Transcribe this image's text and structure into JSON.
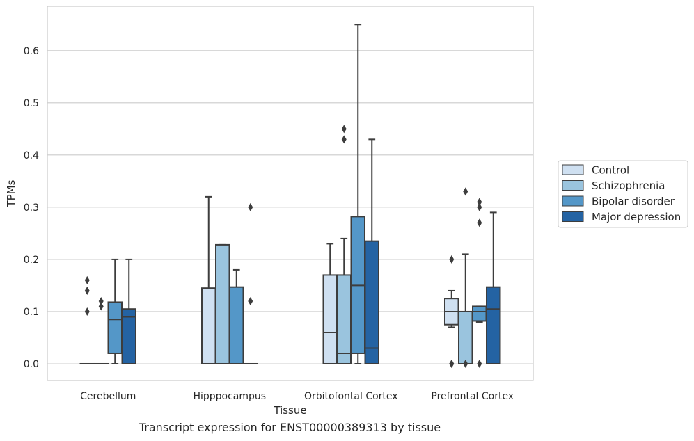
{
  "chart_data": {
    "type": "boxplot",
    "caption": "Transcript expression for ENST00000389313 by tissue",
    "xlabel": "Tissue",
    "ylabel": "TPMs",
    "ylim": [
      -0.032,
      0.685
    ],
    "yticks": [
      "0.0",
      "0.1",
      "0.2",
      "0.3",
      "0.4",
      "0.5",
      "0.6"
    ],
    "grid": true,
    "legend_position": "right",
    "categories": [
      "Cerebellum",
      "Hipppocampus",
      "Orbitofontal Cortex",
      "Prefrontal Cortex"
    ],
    "series": [
      {
        "name": "Control",
        "color": "#cfe0f1",
        "boxes": [
          {
            "low": 0,
            "q1": 0,
            "median": 0,
            "q3": 0,
            "high": 0,
            "outliers": [
              0.1,
              0.14,
              0.16
            ]
          },
          {
            "low": 0,
            "q1": 0,
            "median": 0,
            "q3": 0.145,
            "high": 0.32,
            "outliers": []
          },
          {
            "low": 0,
            "q1": 0,
            "median": 0.06,
            "q3": 0.17,
            "high": 0.23,
            "outliers": []
          },
          {
            "low": 0.07,
            "q1": 0.075,
            "median": 0.1,
            "q3": 0.125,
            "high": 0.14,
            "outliers": [
              0.2,
              0,
              0
            ]
          }
        ]
      },
      {
        "name": "Schizophrenia",
        "color": "#9ac4de",
        "boxes": [
          {
            "low": 0,
            "q1": 0,
            "median": 0,
            "q3": 0,
            "high": 0,
            "outliers": [
              0.11,
              0.12
            ]
          },
          {
            "low": 0,
            "q1": 0,
            "median": 0,
            "q3": 0.228,
            "high": 0.228,
            "outliers": []
          },
          {
            "low": 0,
            "q1": 0,
            "median": 0.02,
            "q3": 0.17,
            "high": 0.24,
            "outliers": [
              0.43,
              0.45
            ]
          },
          {
            "low": 0,
            "q1": 0,
            "median": 0.1,
            "q3": 0.1,
            "high": 0.21,
            "outliers": [
              0.33,
              0
            ]
          }
        ]
      },
      {
        "name": "Bipolar disorder",
        "color": "#5497c8",
        "boxes": [
          {
            "low": 0,
            "q1": 0.02,
            "median": 0.085,
            "q3": 0.118,
            "high": 0.2,
            "outliers": []
          },
          {
            "low": 0,
            "q1": 0,
            "median": 0,
            "q3": 0.147,
            "high": 0.18,
            "outliers": []
          },
          {
            "low": 0,
            "q1": 0.02,
            "median": 0.15,
            "q3": 0.282,
            "high": 0.65,
            "outliers": []
          },
          {
            "low": 0.08,
            "q1": 0.082,
            "median": 0.1,
            "q3": 0.11,
            "high": 0.11,
            "outliers": [
              0.27,
              0.3,
              0.31,
              0
            ]
          }
        ]
      },
      {
        "name": "Major depression",
        "color": "#2463a3",
        "boxes": [
          {
            "low": 0,
            "q1": 0,
            "median": 0.09,
            "q3": 0.105,
            "high": 0.2,
            "outliers": []
          },
          {
            "low": 0,
            "q1": 0,
            "median": 0,
            "q3": 0,
            "high": 0,
            "outliers": [
              0.12,
              0.3
            ]
          },
          {
            "low": 0,
            "q1": 0,
            "median": 0.03,
            "q3": 0.235,
            "high": 0.43,
            "outliers": []
          },
          {
            "low": 0,
            "q1": 0,
            "median": 0.105,
            "q3": 0.147,
            "high": 0.29,
            "outliers": []
          }
        ]
      }
    ]
  }
}
